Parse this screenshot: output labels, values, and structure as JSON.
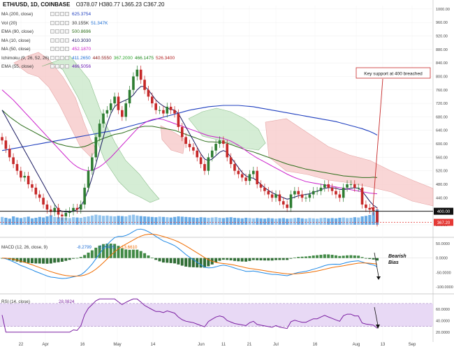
{
  "header": {
    "symbol": "ETH/USD, 1D, COINBASE",
    "ohlc": "O378.07  H380.77  L365.23  C367.20"
  },
  "legend": [
    {
      "label": "MA (200, close)",
      "values": [
        "625.3754"
      ],
      "colors": [
        "#1f3fbf"
      ]
    },
    {
      "label": "Vol (20)",
      "values": [
        "30.155K",
        "51.347K"
      ],
      "colors": [
        "#333333",
        "#1e6fd6"
      ]
    },
    {
      "label": "EMA (90, close)",
      "values": [
        "500.8696"
      ],
      "colors": [
        "#2c6e1a"
      ]
    },
    {
      "label": "MA (10, close)",
      "values": [
        "410.3030"
      ],
      "colors": [
        "#1a1a60"
      ]
    },
    {
      "label": "MA (50, close)",
      "values": [
        "452.1870"
      ],
      "colors": [
        "#cc22cc"
      ]
    },
    {
      "label": "Ichimoku (9, 26, 52, 26)",
      "values": [
        "411.2650",
        "440.5550",
        "367.2000",
        "466.1475",
        "526.3400"
      ],
      "colors": [
        "#1e6fd6",
        "#8b1a1a",
        "#2aa52a",
        "#1e8a1e",
        "#b22222"
      ]
    },
    {
      "label": "EMA (55, close)",
      "values": [
        "466.5056"
      ],
      "colors": [
        "#6a1ab5"
      ]
    }
  ],
  "annotation": {
    "text": "Key support at 400 breached"
  },
  "macd_note": {
    "line1": "Bearish",
    "line2": "Bias"
  },
  "chart_data": [
    {
      "type": "candlestick",
      "panel": "price",
      "x_tick_labels": [
        "22",
        "Apr",
        "16",
        "May",
        "14",
        "Jun",
        "11",
        "21",
        "Jul",
        "16",
        "Aug",
        "13",
        "Sep"
      ],
      "y_tick_labels": [
        "1000.00",
        "960.00",
        "920.00",
        "880.00",
        "840.00",
        "800.00",
        "760.00",
        "720.00",
        "680.00",
        "640.00",
        "600.00",
        "560.00",
        "520.00",
        "480.00",
        "440.00",
        "400.00",
        "360.00"
      ],
      "ylim": [
        360,
        1010
      ],
      "price_labels": {
        "support": "400.00",
        "last": "367.20"
      },
      "close": [
        610,
        585,
        560,
        540,
        520,
        500,
        505,
        480,
        470,
        450,
        440,
        420,
        405,
        398,
        410,
        390,
        385,
        395,
        400,
        410,
        405,
        420,
        470,
        520,
        560,
        620,
        660,
        690,
        700,
        720,
        740,
        700,
        680,
        720,
        760,
        800,
        820,
        790,
        760,
        740,
        720,
        700,
        700,
        690,
        710,
        700,
        690,
        650,
        620,
        600,
        590,
        580,
        560,
        540,
        520,
        560,
        580,
        600,
        610,
        600,
        560,
        540,
        520,
        510,
        500,
        490,
        510,
        520,
        480,
        470,
        460,
        450,
        440,
        450,
        430,
        420,
        410,
        450,
        460,
        450,
        440,
        440,
        450,
        460,
        460,
        470,
        480,
        470,
        460,
        450,
        440,
        470,
        480,
        480,
        470,
        470,
        420,
        410,
        405,
        400,
        367
      ],
      "ema90": [
        700,
        690,
        680,
        672,
        664,
        656,
        650,
        644,
        638,
        632,
        626,
        620,
        614,
        609,
        604,
        600,
        597,
        594,
        592,
        590,
        589,
        590,
        592,
        596,
        602,
        606,
        612,
        616,
        620,
        624,
        628,
        630,
        632,
        636,
        640,
        644,
        648,
        650,
        652,
        652,
        652,
        650,
        648,
        646,
        644,
        642,
        640,
        636,
        632,
        628,
        624,
        620,
        616,
        612,
        608,
        606,
        606,
        605,
        605,
        604,
        602,
        598,
        594,
        590,
        586,
        582,
        579,
        576,
        572,
        568,
        564,
        560,
        556,
        552,
        548,
        544,
        540,
        537,
        534,
        531,
        528,
        525,
        523,
        521,
        519,
        517,
        515,
        513,
        511,
        509,
        507,
        505,
        504,
        503,
        502,
        501,
        500,
        500,
        500,
        501,
        500
      ],
      "ma10": [
        700,
        680,
        660,
        640,
        620,
        600,
        580,
        560,
        540,
        520,
        500,
        480,
        460,
        440,
        420,
        405,
        400,
        398,
        398,
        400,
        405,
        415,
        435,
        465,
        500,
        540,
        580,
        620,
        660,
        690,
        710,
        720,
        725,
        730,
        735,
        745,
        760,
        770,
        770,
        760,
        745,
        730,
        720,
        712,
        706,
        702,
        700,
        690,
        670,
        650,
        630,
        610,
        590,
        570,
        555,
        550,
        555,
        565,
        575,
        580,
        575,
        560,
        545,
        530,
        515,
        505,
        500,
        498,
        490,
        480,
        470,
        462,
        455,
        450,
        445,
        440,
        436,
        438,
        442,
        446,
        448,
        450,
        452,
        456,
        460,
        464,
        468,
        470,
        470,
        468,
        465,
        464,
        466,
        468,
        470,
        468,
        460,
        445,
        430,
        418,
        410
      ],
      "ma50": [
        760,
        750,
        740,
        730,
        718,
        706,
        694,
        682,
        670,
        658,
        646,
        634,
        622,
        610,
        598,
        586,
        574,
        562,
        550,
        540,
        532,
        526,
        522,
        520,
        522,
        526,
        532,
        540,
        550,
        560,
        572,
        584,
        596,
        608,
        620,
        632,
        644,
        654,
        662,
        668,
        672,
        674,
        674,
        672,
        668,
        664,
        660,
        656,
        652,
        648,
        644,
        640,
        636,
        632,
        628,
        624,
        622,
        620,
        618,
        616,
        612,
        608,
        602,
        596,
        588,
        580,
        572,
        565,
        558,
        552,
        546,
        540,
        534,
        528,
        522,
        516,
        510,
        505,
        500,
        496,
        492,
        488,
        486,
        484,
        482,
        480,
        478,
        476,
        474,
        472,
        470,
        468,
        466,
        464,
        462,
        460,
        458,
        456,
        454,
        453,
        452
      ],
      "ma200": [
        580,
        582,
        584,
        586,
        588,
        590,
        592,
        594,
        596,
        598,
        600,
        602,
        604,
        606,
        608,
        610,
        612,
        614,
        616,
        618,
        620,
        622,
        624,
        626,
        628,
        630,
        632,
        634,
        636,
        638,
        640,
        643,
        646,
        649,
        652,
        655,
        658,
        661,
        664,
        667,
        670,
        673,
        676,
        679,
        682,
        685,
        688,
        691,
        694,
        697,
        700,
        702,
        704,
        706,
        708,
        710,
        711,
        712,
        713,
        714,
        714,
        714,
        714,
        714,
        713,
        712,
        711,
        710,
        708,
        706,
        704,
        702,
        700,
        698,
        696,
        694,
        692,
        690,
        688,
        686,
        684,
        682,
        680,
        678,
        676,
        674,
        672,
        670,
        668,
        666,
        663,
        660,
        657,
        654,
        651,
        648,
        645,
        641,
        637,
        632,
        626
      ],
      "cloud_upper": [
        null,
        null,
        null,
        null,
        null,
        null,
        null,
        null,
        null,
        null,
        null,
        null,
        null,
        null,
        null,
        null,
        null,
        null,
        null,
        null,
        null,
        null,
        null,
        null,
        null,
        null,
        null,
        null,
        null,
        null,
        null,
        null,
        null,
        null,
        null,
        null,
        null,
        null,
        null,
        null,
        null,
        null,
        null,
        null,
        null,
        null,
        null,
        null,
        null,
        null,
        null,
        null,
        null,
        null,
        null,
        null,
        null,
        null,
        null,
        null,
        null,
        null,
        null,
        null,
        null,
        null,
        null,
        null,
        null,
        null,
        null,
        null,
        null,
        null,
        null,
        null,
        null,
        null,
        null,
        null,
        null,
        null,
        null,
        null,
        null,
        null,
        null,
        null,
        null,
        null,
        null,
        null,
        null,
        null,
        null,
        null,
        null,
        null,
        null,
        null,
        null
      ],
      "volume": [
        0.28,
        0.25,
        0.22,
        0.3,
        0.26,
        0.24,
        0.27,
        0.29,
        0.23,
        0.25,
        0.28,
        0.26,
        0.3,
        0.34,
        0.28,
        0.27,
        0.26,
        0.25,
        0.24,
        0.27,
        0.26,
        0.25,
        0.28,
        0.3,
        0.33,
        0.36,
        0.34,
        0.32,
        0.33,
        0.31,
        0.3,
        0.32,
        0.31,
        0.3,
        0.34,
        0.36,
        0.33,
        0.31,
        0.3,
        0.29,
        0.28,
        0.27,
        0.29,
        0.28,
        0.27,
        0.26,
        0.28,
        0.3,
        0.29,
        0.28,
        0.27,
        0.26,
        0.25,
        0.27,
        0.26,
        0.25,
        0.26,
        0.27,
        0.25,
        0.24,
        0.26,
        0.27,
        0.25,
        0.24,
        0.23,
        0.25,
        0.24,
        0.23,
        0.24,
        0.23,
        0.22,
        0.24,
        0.23,
        0.22,
        0.23,
        0.24,
        0.22,
        0.23,
        0.24,
        0.25,
        0.23,
        0.22,
        0.24,
        0.23,
        0.22,
        0.24,
        0.25,
        0.23,
        0.24,
        0.23,
        0.25,
        0.26,
        0.24,
        0.25,
        0.27,
        0.26,
        0.3,
        0.32,
        0.35,
        0.45,
        0.55
      ]
    },
    {
      "type": "macd",
      "panel": "macd",
      "label": "MACD (12, 26, close, 9)",
      "values": [
        "-8.2799",
        "-21.9409",
        "-13.6610"
      ],
      "y_tick_labels": [
        "50.0000",
        "0.0000",
        "-50.0000",
        "-100.0000"
      ],
      "ylim": [
        -110,
        60
      ]
    },
    {
      "type": "line",
      "panel": "rsi",
      "label": "RSI (14, close)",
      "values": [
        "28.0824"
      ],
      "y_tick_labels": [
        "60.0000",
        "40.0000",
        "20.0000"
      ],
      "ylim": [
        15,
        82
      ],
      "bands": [
        30,
        70
      ]
    }
  ]
}
